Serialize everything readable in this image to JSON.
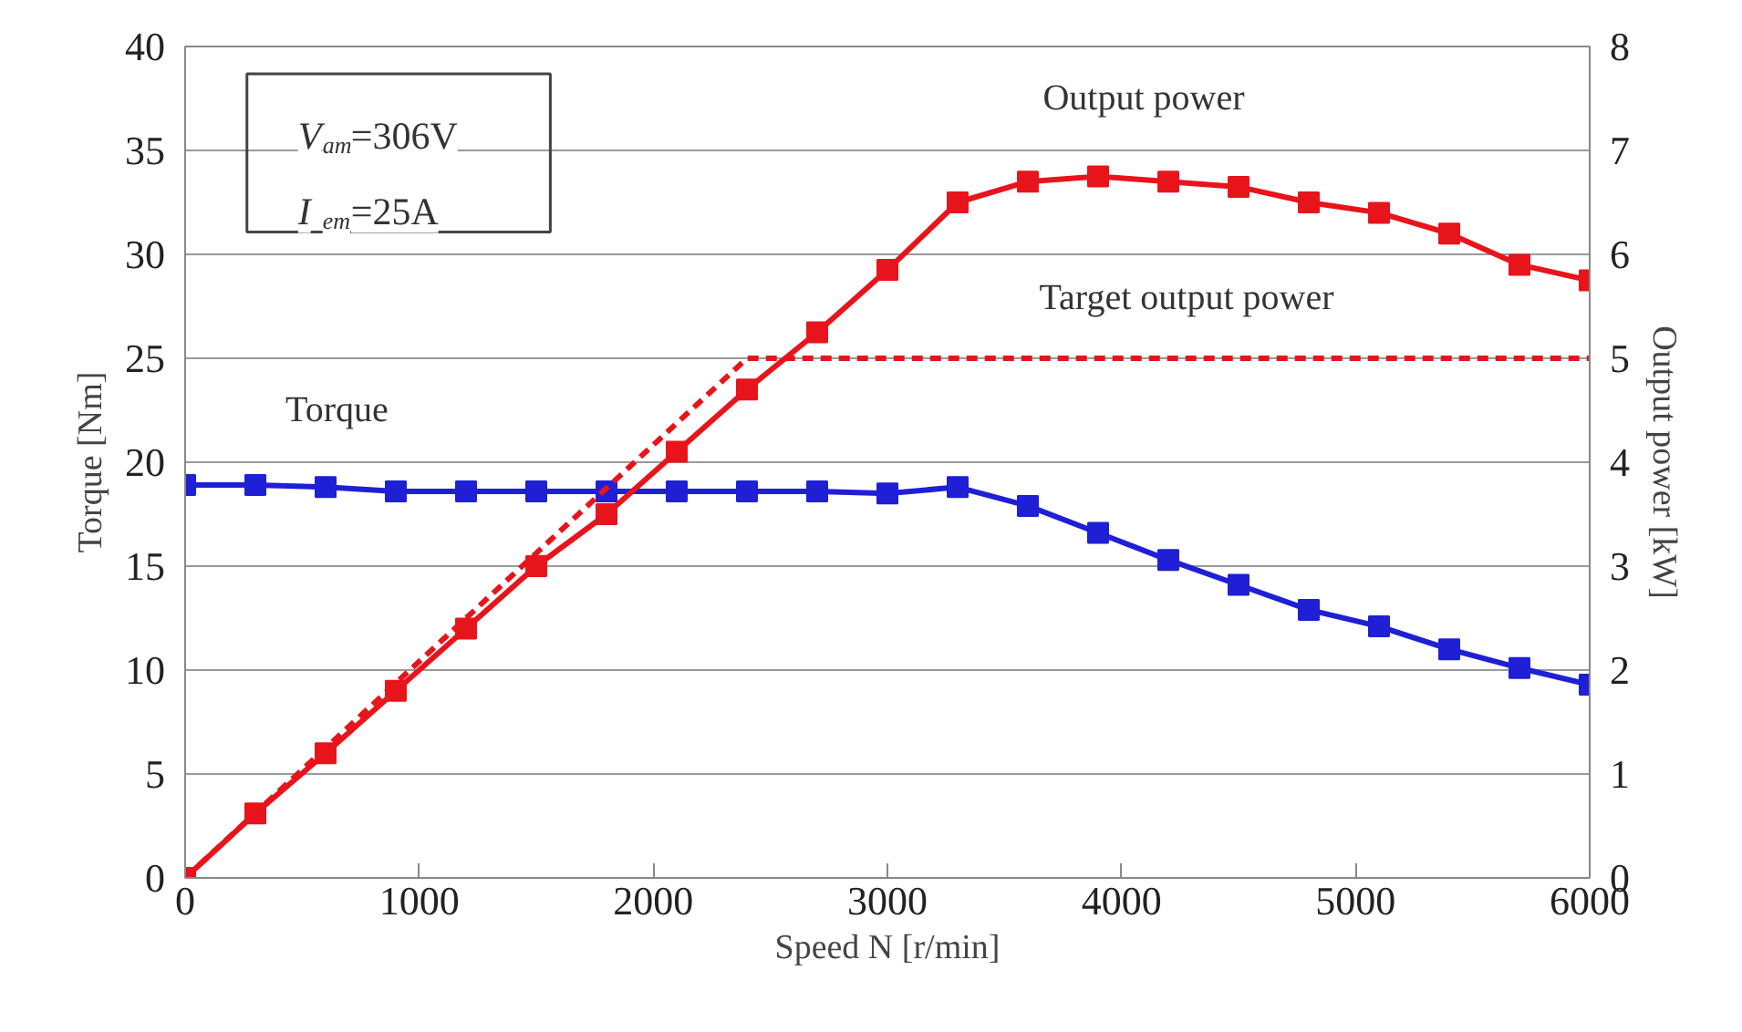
{
  "chart_data": {
    "type": "line",
    "xlabel": "Speed N [r/min]",
    "ylabel": "Torque [Nm]",
    "y2label": "Output power [kW]",
    "annotations": [
      "V$_{am}$=306V",
      "I$_{em}$=25A"
    ],
    "xlim": [
      0,
      6000
    ],
    "xticks": [
      0,
      1000,
      2000,
      3000,
      4000,
      5000,
      6000
    ],
    "ylim": [
      0,
      40
    ],
    "yticks": [
      0,
      5,
      10,
      15,
      20,
      25,
      30,
      35,
      40
    ],
    "y2lim": [
      0,
      8
    ],
    "y2ticks": [
      0,
      1,
      2,
      3,
      4,
      5,
      6,
      7,
      8
    ],
    "grid": "y",
    "series": [
      {
        "name": "Torque",
        "color": "#1f1fd6",
        "marker": "square",
        "line_style": "solid",
        "x": [
          0,
          300,
          600,
          900,
          1200,
          1500,
          1800,
          2100,
          2400,
          2700,
          3000,
          3300,
          3600,
          3900,
          4200,
          4500,
          4800,
          5100,
          5400,
          5700,
          6000
        ],
        "values": [
          18.9,
          18.9,
          18.8,
          18.6,
          18.6,
          18.6,
          18.6,
          18.6,
          18.6,
          18.6,
          18.5,
          18.8,
          17.9,
          16.6,
          15.3,
          14.1,
          12.9,
          12.1,
          11.0,
          10.1,
          9.3
        ]
      },
      {
        "name": "Output power",
        "color": "#e8141b",
        "axis": "y2",
        "marker": "square",
        "line_style": "solid",
        "x": [
          0,
          300,
          600,
          900,
          1200,
          1500,
          1800,
          2100,
          2400,
          2700,
          3000,
          3300,
          3600,
          3900,
          4200,
          4500,
          4800,
          5100,
          5400,
          5700,
          6000
        ],
        "values": [
          0,
          0.62,
          1.2,
          1.8,
          2.4,
          3.0,
          3.5,
          4.1,
          4.7,
          5.25,
          5.85,
          6.5,
          6.7,
          6.75,
          6.7,
          6.65,
          6.5,
          6.4,
          6.2,
          5.9,
          5.75
        ]
      },
      {
        "name": "Target output power",
        "color": "#e8141b",
        "axis": "y2",
        "marker": "none",
        "line_style": "dashed",
        "x": [
          0,
          2400,
          6000
        ],
        "values": [
          0,
          5,
          5
        ]
      }
    ]
  }
}
